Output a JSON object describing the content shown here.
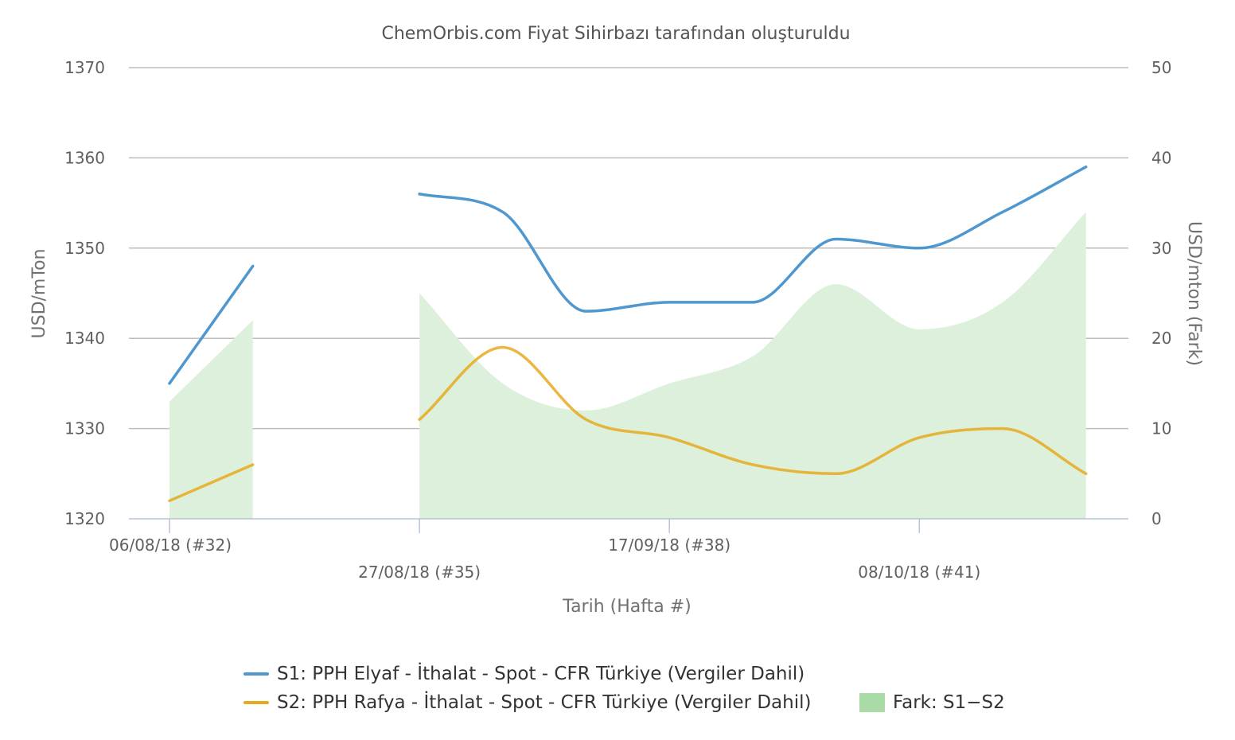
{
  "chart_data": {
    "type": "line",
    "title": "ChemOrbis.com Fiyat Sihirbazı tarafından oluşturuldu",
    "xlabel": "Tarih (Hafta #)",
    "ylabel": "USD/mTon",
    "ylabel_right": "USD/mton (Fark)",
    "ylim": [
      1320,
      1370
    ],
    "ylim_right": [
      0,
      50
    ],
    "y_ticks": [
      "1320",
      "1330",
      "1340",
      "1350",
      "1360",
      "1370"
    ],
    "y_ticks_right": [
      "0",
      "10",
      "20",
      "30",
      "40",
      "50"
    ],
    "x_ticks": [
      "06/08/18 (#32)",
      "27/08/18 (#35)",
      "17/09/18 (#38)",
      "08/10/18 (#41)"
    ],
    "x": [
      "06/08/18",
      "13/08/18",
      "20/08/18",
      "27/08/18",
      "03/09/18",
      "10/09/18",
      "17/09/18",
      "24/09/18",
      "01/10/18",
      "08/10/18",
      "15/10/18",
      "22/10/18"
    ],
    "series": [
      {
        "name": "S1: PPH Elyaf - İthalat - Spot - CFR Türkiye (Vergiler Dahil)",
        "axis": "left",
        "color": "#4e97cf",
        "values": [
          1335,
          1348,
          null,
          1356,
          1354,
          1343,
          1344,
          1344,
          1351,
          1350,
          1354,
          1359
        ]
      },
      {
        "name": "S2: PPH Rafya - İthalat - Spot - CFR Türkiye (Vergiler Dahil)",
        "axis": "left",
        "color": "#e6aa1e",
        "values": [
          1322,
          1326,
          null,
          1331,
          1339,
          1331,
          1329,
          1326,
          1325,
          1329,
          1330,
          1325
        ]
      },
      {
        "name": "Fark: S1−S2",
        "axis": "right",
        "type": "area",
        "color": "#a8dba6",
        "values": [
          13,
          22,
          null,
          25,
          15,
          12,
          15,
          18,
          26,
          21,
          24,
          34
        ]
      }
    ],
    "grid": true,
    "legend_position": "bottom-center"
  }
}
